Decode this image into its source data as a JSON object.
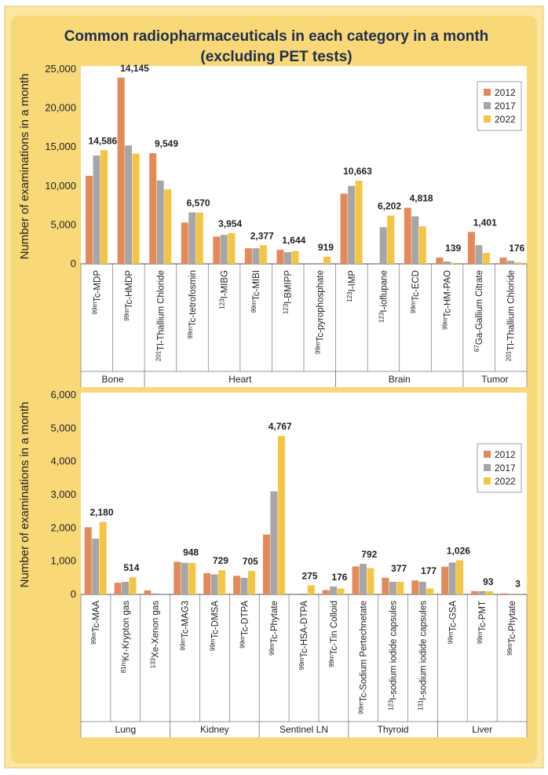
{
  "colors": {
    "s2012": "#e4895a",
    "s2017": "#a6a6a6",
    "s2022": "#f4c542",
    "page_bg": "#fbe6a2",
    "panel_bg": "#ffffff",
    "title": "#1f2e4a"
  },
  "chart_data": [
    {
      "type": "bar",
      "title": "Common radiopharmaceuticals in each category in a month",
      "subtitle": "(excluding PET tests)",
      "ylabel": "Number of examinations in a month",
      "xlabel": "",
      "ylim": [
        0,
        25000
      ],
      "yticks": [
        "0",
        "5,000",
        "10,000",
        "15,000",
        "20,000",
        "25,000"
      ],
      "ytick_values": [
        0,
        5000,
        10000,
        15000,
        20000,
        25000
      ],
      "legend": [
        "2012",
        "2017",
        "2022"
      ],
      "legend_position": "top-right",
      "categories": [
        {
          "sup": "99m",
          "name": "Tc-MDP"
        },
        {
          "sup": "99m",
          "name": "Tc-HMDP"
        },
        {
          "sup": "201",
          "name": "Tl-Thallium Chloride"
        },
        {
          "sup": "99m",
          "name": "Tc-tetrofosmin"
        },
        {
          "sup": "123",
          "name": "I-MIBG"
        },
        {
          "sup": "99m",
          "name": "Tc-MIBI"
        },
        {
          "sup": "123",
          "name": "I-BMIPP"
        },
        {
          "sup": "99m",
          "name": "Tc-pyrophosphate"
        },
        {
          "sup": "123",
          "name": "I-IMP"
        },
        {
          "sup": "123",
          "name": "I-ioflupane"
        },
        {
          "sup": "99m",
          "name": "Tc-ECD"
        },
        {
          "sup": "99m",
          "name": "Tc-HM-PAO"
        },
        {
          "sup": "67",
          "name": "Ga-Gallium Citrate"
        },
        {
          "sup": "201",
          "name": "Tl-Thallium Chloride"
        }
      ],
      "groups": [
        {
          "name": "Bone",
          "start": 0,
          "end": 1
        },
        {
          "name": "Heart",
          "start": 2,
          "end": 7
        },
        {
          "name": "Brain",
          "start": 8,
          "end": 11
        },
        {
          "name": "Tumor",
          "start": 12,
          "end": 13
        }
      ],
      "series": [
        {
          "name": "2012",
          "values": [
            11300,
            23900,
            14200,
            5300,
            3500,
            2000,
            1800,
            0,
            9000,
            0,
            7200,
            800,
            4100,
            800
          ]
        },
        {
          "name": "2017",
          "values": [
            13900,
            15200,
            10700,
            6600,
            3700,
            2000,
            1500,
            0,
            10000,
            4700,
            6100,
            300,
            2400,
            400
          ]
        },
        {
          "name": "2022",
          "values": [
            14586,
            14145,
            9549,
            6570,
            3954,
            2377,
            1644,
            919,
            10663,
            6202,
            4818,
            139,
            1401,
            176
          ]
        }
      ],
      "data_labels": [
        "14,586",
        "14,145",
        "9,549",
        "6,570",
        "3,954",
        "2,377",
        "1,644",
        "919",
        "10,663",
        "6,202",
        "4,818",
        "139",
        "1,401",
        "176"
      ]
    },
    {
      "type": "bar",
      "title": "",
      "ylabel": "Number of examinations in a month",
      "xlabel": "",
      "ylim": [
        0,
        6000
      ],
      "yticks": [
        "0",
        "1,000",
        "2,000",
        "3,000",
        "4,000",
        "5,000",
        "6,000"
      ],
      "ytick_values": [
        0,
        1000,
        2000,
        3000,
        4000,
        5000,
        6000
      ],
      "legend": [
        "2012",
        "2017",
        "2022"
      ],
      "legend_position": "top-right",
      "categories": [
        {
          "sup": "99m",
          "name": "Tc-MAA"
        },
        {
          "sup": "81m",
          "name": "Kr-Krypton gas"
        },
        {
          "sup": "133",
          "name": "Xe-Xenon gas"
        },
        {
          "sup": "99m",
          "name": "Tc-MAG3"
        },
        {
          "sup": "99m",
          "name": "Tc-DMSA"
        },
        {
          "sup": "99m",
          "name": "Tc-DTPA"
        },
        {
          "sup": "99m",
          "name": "Tc-Phytate"
        },
        {
          "sup": "99m",
          "name": "Tc-HSA-DTPA"
        },
        {
          "sup": "99m",
          "name": "Tc-Tin Colloid"
        },
        {
          "sup": "99m",
          "name": "Tc-Sodium Pertechnetate"
        },
        {
          "sup": "123",
          "name": "I-sodium iodide capsules"
        },
        {
          "sup": "131",
          "name": "I-sodium iodide capsules"
        },
        {
          "sup": "99m",
          "name": "Tc-GSA"
        },
        {
          "sup": "99m",
          "name": "Tc-PMT"
        },
        {
          "sup": "99m",
          "name": "Tc-Phytate"
        }
      ],
      "groups": [
        {
          "name": "Lung",
          "start": 0,
          "end": 2
        },
        {
          "name": "Kidney",
          "start": 3,
          "end": 5
        },
        {
          "name": "Sentinel LN",
          "start": 6,
          "end": 8
        },
        {
          "name": "Thyroid",
          "start": 9,
          "end": 11
        },
        {
          "name": "Liver",
          "start": 12,
          "end": 14
        }
      ],
      "series": [
        {
          "name": "2012",
          "values": [
            2020,
            350,
            120,
            980,
            640,
            560,
            1800,
            0,
            130,
            840,
            500,
            420,
            830,
            100,
            30
          ]
        },
        {
          "name": "2017",
          "values": [
            1680,
            380,
            30,
            950,
            600,
            500,
            3100,
            30,
            240,
            920,
            380,
            380,
            960,
            100,
            20
          ]
        },
        {
          "name": "2022",
          "values": [
            2180,
            514,
            0,
            948,
            729,
            705,
            4767,
            275,
            176,
            792,
            377,
            177,
            1026,
            93,
            3
          ]
        }
      ],
      "data_labels": [
        "2,180",
        "514",
        "",
        "948",
        "729",
        "705",
        "4,767",
        "275",
        "176",
        "792",
        "377",
        "177",
        "1,026",
        "93",
        "3"
      ]
    }
  ]
}
